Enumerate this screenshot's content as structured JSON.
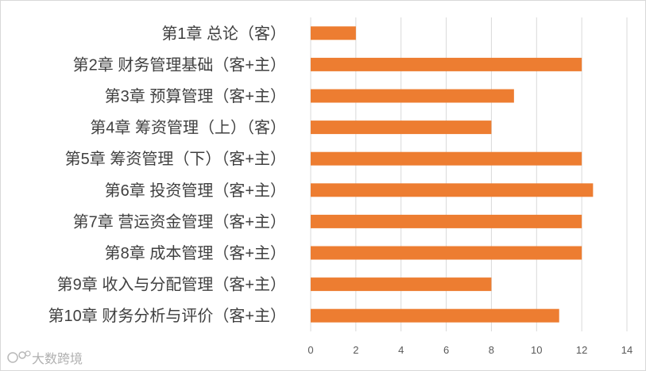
{
  "chart_data": {
    "type": "bar",
    "orientation": "horizontal",
    "categories": [
      "第1章 总论（客）",
      "第2章 财务管理基础（客+主）",
      "第3章 预算管理（客+主）",
      "第4章 筹资管理（上）（客）",
      "第5章 筹资管理（下）（客+主）",
      "第6章 投资管理（客+主）",
      "第7章 营运资金管理（客+主）",
      "第8章 成本管理（客+主）",
      "第9章 收入与分配管理（客+主）",
      "第10章 财务分析与评价（客+主）"
    ],
    "values": [
      2,
      12,
      9,
      8,
      12,
      12.5,
      12,
      12,
      8,
      11
    ],
    "xlim": [
      0,
      14
    ],
    "xticks": [
      "0",
      "2",
      "4",
      "6",
      "8",
      "10",
      "12",
      "14"
    ],
    "bar_color": "#ed7d31",
    "grid": true,
    "legend": "none"
  },
  "watermark": {
    "text": "大数跨境"
  }
}
